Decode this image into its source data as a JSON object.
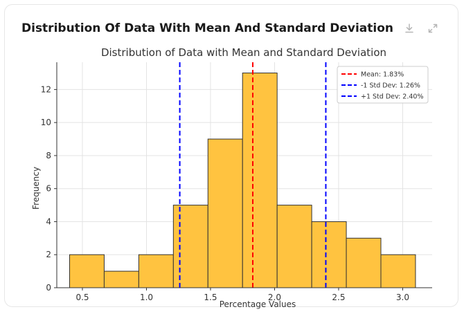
{
  "card": {
    "title": "Distribution Of Data With Mean And Standard Deviation"
  },
  "icons": {
    "download": "download-icon",
    "expand": "expand-icon"
  },
  "chart_data": {
    "type": "bar",
    "title": "Distribution of Data with Mean and Standard Deviation",
    "xlabel": "Percentage Values",
    "ylabel": "Frequency",
    "xlim": [
      0.3,
      3.23
    ],
    "ylim": [
      0,
      13.65
    ],
    "xticks": [
      "0.5",
      "1.0",
      "1.5",
      "2.0",
      "2.5",
      "3.0"
    ],
    "yticks": [
      "0",
      "2",
      "4",
      "6",
      "8",
      "10",
      "12"
    ],
    "bins": [
      {
        "start": 0.4,
        "end": 0.67,
        "count": 2
      },
      {
        "start": 0.67,
        "end": 0.94,
        "count": 1
      },
      {
        "start": 0.94,
        "end": 1.21,
        "count": 2
      },
      {
        "start": 1.21,
        "end": 1.48,
        "count": 5
      },
      {
        "start": 1.48,
        "end": 1.75,
        "count": 9
      },
      {
        "start": 1.75,
        "end": 2.02,
        "count": 13
      },
      {
        "start": 2.02,
        "end": 2.29,
        "count": 5
      },
      {
        "start": 2.29,
        "end": 2.56,
        "count": 4
      },
      {
        "start": 2.56,
        "end": 2.83,
        "count": 3
      },
      {
        "start": 2.83,
        "end": 3.1,
        "count": 2
      }
    ],
    "lines": [
      {
        "label": "Mean: 1.83%",
        "x": 1.83,
        "color": "#ff0000"
      },
      {
        "label": "-1 Std Dev: 1.26%",
        "x": 1.26,
        "color": "#0000ff"
      },
      {
        "label": "+1 Std Dev: 2.40%",
        "x": 2.4,
        "color": "#0000ff"
      }
    ],
    "bar_color": "#ffc340",
    "bar_edge": "#333333",
    "grid": true,
    "legend_position": "top-right"
  }
}
